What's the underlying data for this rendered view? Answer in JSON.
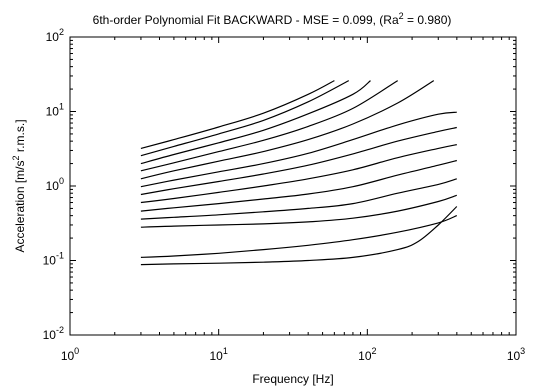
{
  "chart_data": {
    "type": "line",
    "title_parts": {
      "a": "6th-order Polynomial Fit BACKWARD - MSE = 0.099, (Ra",
      "sup": "2",
      "b": " = 0.980)"
    },
    "xlabel": "Frequency [Hz]",
    "ylabel_parts": {
      "a": "Acceleration [m/s",
      "sup": "2",
      "b": " r.m.s.]"
    },
    "x_scale": "log",
    "y_scale": "log",
    "xlim": [
      1,
      1000
    ],
    "ylim": [
      0.01,
      100
    ],
    "grid": false,
    "x_ticks": [
      {
        "value": 1,
        "base": "10",
        "exp": "0"
      },
      {
        "value": 10,
        "base": "10",
        "exp": "1"
      },
      {
        "value": 100,
        "base": "10",
        "exp": "2"
      },
      {
        "value": 1000,
        "base": "10",
        "exp": "3"
      }
    ],
    "y_ticks": [
      {
        "value": 0.01,
        "base": "10",
        "exp": "-2"
      },
      {
        "value": 0.1,
        "base": "10",
        "exp": "-1"
      },
      {
        "value": 1,
        "base": "10",
        "exp": "0"
      },
      {
        "value": 10,
        "base": "10",
        "exp": "1"
      },
      {
        "value": 100,
        "base": "10",
        "exp": "2"
      }
    ],
    "line_color": "#000000",
    "series": [
      {
        "x": [
          3,
          5,
          10,
          20,
          40,
          60
        ],
        "y": [
          3.2,
          4.2,
          6.2,
          9.5,
          17,
          26
        ]
      },
      {
        "x": [
          3,
          5,
          10,
          20,
          40,
          75
        ],
        "y": [
          2.55,
          3.4,
          5.0,
          7.6,
          13.5,
          26
        ]
      },
      {
        "x": [
          3,
          5,
          10,
          20,
          40,
          80,
          105
        ],
        "y": [
          2.0,
          2.65,
          3.8,
          5.6,
          9.3,
          17,
          26
        ]
      },
      {
        "x": [
          3,
          5,
          10,
          20,
          40,
          80,
          160
        ],
        "y": [
          1.6,
          2.05,
          2.9,
          4.1,
          6.3,
          11,
          26
        ]
      },
      {
        "x": [
          3,
          5,
          10,
          20,
          40,
          80,
          160,
          280
        ],
        "y": [
          1.25,
          1.6,
          2.15,
          2.9,
          4.2,
          6.8,
          13,
          26
        ]
      },
      {
        "x": [
          3,
          5,
          10,
          20,
          40,
          80,
          160,
          300,
          400
        ],
        "y": [
          0.98,
          1.2,
          1.55,
          2.0,
          2.75,
          4.2,
          6.6,
          9.2,
          9.8
        ]
      },
      {
        "x": [
          3,
          5,
          10,
          20,
          40,
          80,
          160,
          300,
          400
        ],
        "y": [
          0.77,
          0.92,
          1.15,
          1.45,
          1.9,
          2.7,
          4.0,
          5.4,
          6.1
        ]
      },
      {
        "x": [
          3,
          5,
          10,
          20,
          40,
          80,
          160,
          300,
          400
        ],
        "y": [
          0.6,
          0.68,
          0.82,
          1.0,
          1.25,
          1.65,
          2.4,
          3.2,
          3.6
        ]
      },
      {
        "x": [
          3,
          5,
          10,
          20,
          40,
          80,
          160,
          300,
          400
        ],
        "y": [
          0.46,
          0.51,
          0.58,
          0.67,
          0.78,
          0.98,
          1.4,
          1.9,
          2.2
        ]
      },
      {
        "x": [
          3,
          5,
          10,
          20,
          40,
          80,
          160,
          300,
          400
        ],
        "y": [
          0.36,
          0.38,
          0.41,
          0.45,
          0.5,
          0.58,
          0.8,
          1.05,
          1.25
        ]
      },
      {
        "x": [
          3,
          5,
          10,
          20,
          40,
          80,
          160,
          300,
          400
        ],
        "y": [
          0.28,
          0.29,
          0.3,
          0.31,
          0.33,
          0.37,
          0.46,
          0.62,
          0.75
        ]
      },
      {
        "x": [
          3,
          5,
          10,
          20,
          40,
          80,
          160,
          300,
          400
        ],
        "y": [
          0.11,
          0.115,
          0.125,
          0.14,
          0.16,
          0.19,
          0.24,
          0.32,
          0.4
        ]
      },
      {
        "x": [
          3,
          5,
          10,
          20,
          40,
          80,
          160,
          220,
          300,
          400
        ],
        "y": [
          0.088,
          0.09,
          0.092,
          0.095,
          0.1,
          0.11,
          0.14,
          0.18,
          0.3,
          0.53
        ]
      }
    ]
  }
}
